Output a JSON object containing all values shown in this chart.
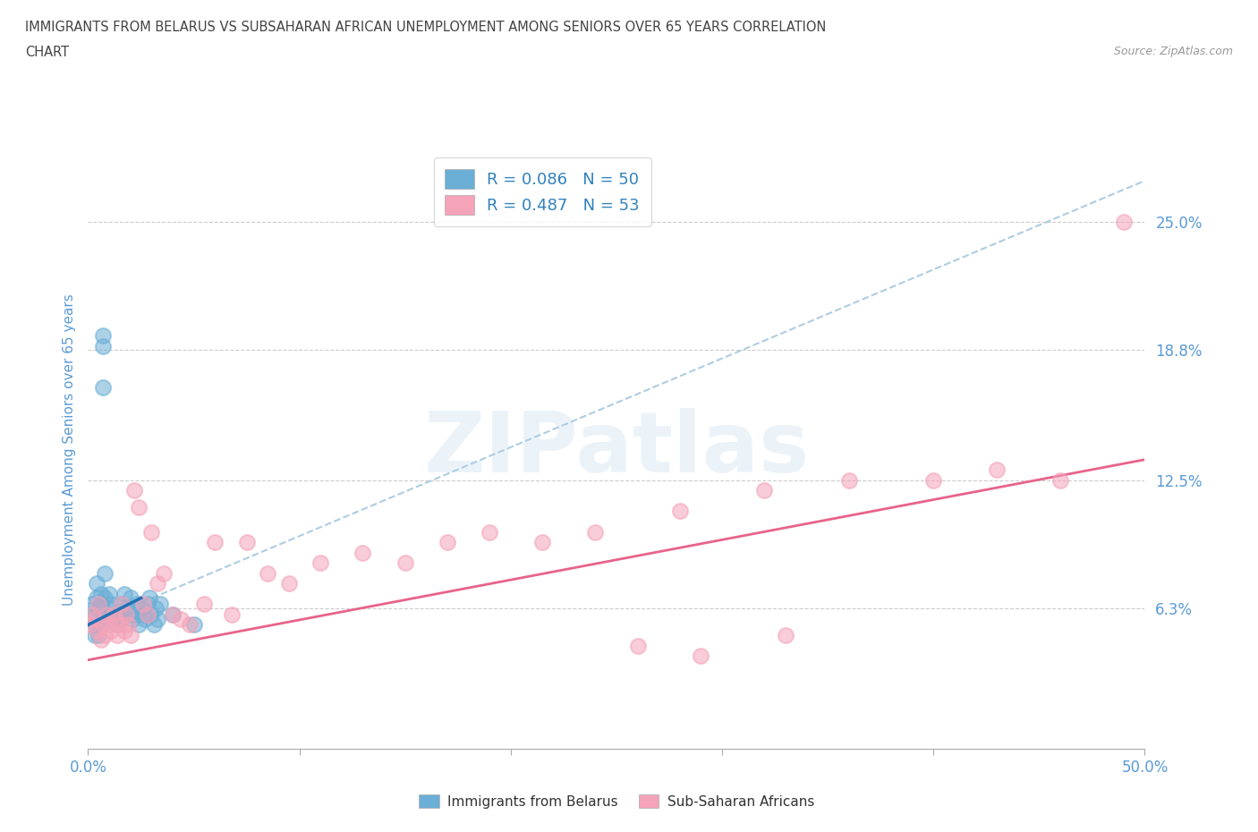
{
  "title_line1": "IMMIGRANTS FROM BELARUS VS SUBSAHARAN AFRICAN UNEMPLOYMENT AMONG SENIORS OVER 65 YEARS CORRELATION",
  "title_line2": "CHART",
  "source_text": "Source: ZipAtlas.com",
  "ylabel": "Unemployment Among Seniors over 65 years",
  "x_min": 0.0,
  "x_max": 0.5,
  "y_min": -0.005,
  "y_max": 0.285,
  "y_ticks": [
    0.063,
    0.125,
    0.188,
    0.25
  ],
  "y_tick_labels": [
    "6.3%",
    "12.5%",
    "18.8%",
    "25.0%"
  ],
  "x_ticks": [
    0.0,
    0.1,
    0.2,
    0.3,
    0.4,
    0.5
  ],
  "x_tick_labels": [
    "0.0%",
    "",
    "",
    "",
    "",
    "50.0%"
  ],
  "color_blue": "#6baed6",
  "color_pink": "#f4a3b8",
  "trend_blue_color": "#aecde1",
  "trend_pink_color": "#e8638a",
  "legend_R1": "R = 0.086",
  "legend_N1": "N = 50",
  "legend_R2": "R = 0.487",
  "legend_N2": "N = 53",
  "legend_text_color": "#3182bd",
  "title_color": "#555555",
  "axis_label_color": "#5b9bd5",
  "watermark_text": "ZIPatlas",
  "blue_scatter_x": [
    0.001,
    0.002,
    0.002,
    0.003,
    0.003,
    0.004,
    0.004,
    0.005,
    0.005,
    0.005,
    0.005,
    0.006,
    0.006,
    0.006,
    0.007,
    0.007,
    0.007,
    0.008,
    0.008,
    0.008,
    0.009,
    0.01,
    0.01,
    0.011,
    0.012,
    0.013,
    0.014,
    0.015,
    0.015,
    0.016,
    0.017,
    0.018,
    0.019,
    0.02,
    0.021,
    0.022,
    0.023,
    0.024,
    0.025,
    0.026,
    0.027,
    0.028,
    0.029,
    0.03,
    0.031,
    0.032,
    0.033,
    0.034,
    0.04,
    0.05
  ],
  "blue_scatter_y": [
    0.062,
    0.058,
    0.065,
    0.055,
    0.05,
    0.068,
    0.075,
    0.06,
    0.063,
    0.058,
    0.05,
    0.065,
    0.055,
    0.07,
    0.195,
    0.19,
    0.17,
    0.08,
    0.068,
    0.058,
    0.06,
    0.07,
    0.063,
    0.065,
    0.06,
    0.058,
    0.055,
    0.06,
    0.058,
    0.065,
    0.07,
    0.063,
    0.06,
    0.068,
    0.058,
    0.06,
    0.065,
    0.055,
    0.063,
    0.06,
    0.058,
    0.065,
    0.068,
    0.06,
    0.055,
    0.063,
    0.058,
    0.065,
    0.06,
    0.055
  ],
  "pink_scatter_x": [
    0.001,
    0.002,
    0.003,
    0.004,
    0.005,
    0.006,
    0.007,
    0.008,
    0.009,
    0.01,
    0.011,
    0.012,
    0.013,
    0.014,
    0.015,
    0.016,
    0.017,
    0.018,
    0.019,
    0.02,
    0.022,
    0.024,
    0.026,
    0.028,
    0.03,
    0.033,
    0.036,
    0.04,
    0.044,
    0.048,
    0.055,
    0.06,
    0.068,
    0.075,
    0.085,
    0.095,
    0.11,
    0.13,
    0.15,
    0.17,
    0.19,
    0.215,
    0.24,
    0.28,
    0.32,
    0.36,
    0.4,
    0.43,
    0.46,
    0.49,
    0.26,
    0.29,
    0.33
  ],
  "pink_scatter_y": [
    0.055,
    0.06,
    0.058,
    0.052,
    0.065,
    0.048,
    0.055,
    0.05,
    0.06,
    0.055,
    0.052,
    0.06,
    0.058,
    0.05,
    0.055,
    0.065,
    0.052,
    0.06,
    0.055,
    0.05,
    0.12,
    0.112,
    0.065,
    0.06,
    0.1,
    0.075,
    0.08,
    0.06,
    0.058,
    0.055,
    0.065,
    0.095,
    0.06,
    0.095,
    0.08,
    0.075,
    0.085,
    0.09,
    0.085,
    0.095,
    0.1,
    0.095,
    0.1,
    0.11,
    0.12,
    0.125,
    0.125,
    0.13,
    0.125,
    0.25,
    0.045,
    0.04,
    0.05
  ],
  "blue_trend_y_start": 0.055,
  "blue_trend_y_end": 0.27,
  "pink_trend_y_start": 0.038,
  "pink_trend_y_end": 0.135
}
